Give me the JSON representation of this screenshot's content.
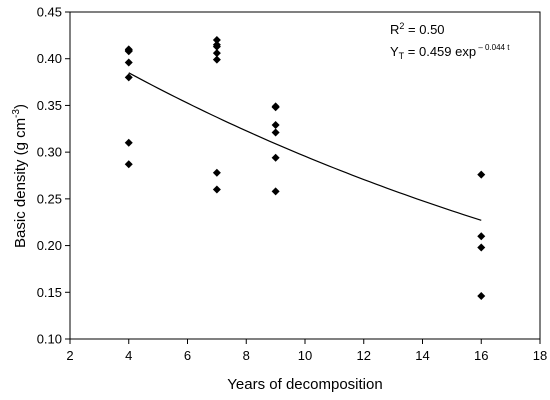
{
  "chart_data": {
    "type": "scatter",
    "title": "",
    "xlabel": "Years of decomposition",
    "ylabel_main": "Basic density (g cm",
    "ylabel_sup": "-3",
    "ylabel_end": ")",
    "xlim": [
      2,
      18
    ],
    "ylim": [
      0.1,
      0.45
    ],
    "xticks": [
      "2",
      "4",
      "6",
      "8",
      "10",
      "12",
      "14",
      "16",
      "18"
    ],
    "yticks": [
      "0.10",
      "0.15",
      "0.20",
      "0.25",
      "0.30",
      "0.35",
      "0.40",
      "0.45"
    ],
    "grid": false,
    "series": [
      {
        "marker": "diamond",
        "color": "#000000",
        "x": [
          4,
          4,
          4,
          4,
          4,
          4,
          4,
          7,
          7,
          7,
          7,
          7,
          7,
          7,
          9,
          9,
          9,
          9,
          9,
          9,
          16,
          16,
          16,
          16
        ],
        "y": [
          0.41,
          0.408,
          0.396,
          0.38,
          0.31,
          0.287,
          0.409,
          0.42,
          0.413,
          0.406,
          0.399,
          0.278,
          0.26,
          0.415,
          0.349,
          0.329,
          0.321,
          0.294,
          0.258,
          0.348,
          0.276,
          0.21,
          0.198,
          0.146
        ]
      }
    ],
    "fit": {
      "type": "exponential",
      "a": 0.459,
      "b": -0.044,
      "x_range": [
        4,
        16
      ]
    },
    "annotations": {
      "r2_main": "R",
      "r2_sup": "2",
      "r2_value": " = 0.50",
      "eq_y": "Y",
      "eq_sub": "T",
      "eq_mid": " = 0.459 exp",
      "eq_sup": " – 0.044 t"
    }
  }
}
